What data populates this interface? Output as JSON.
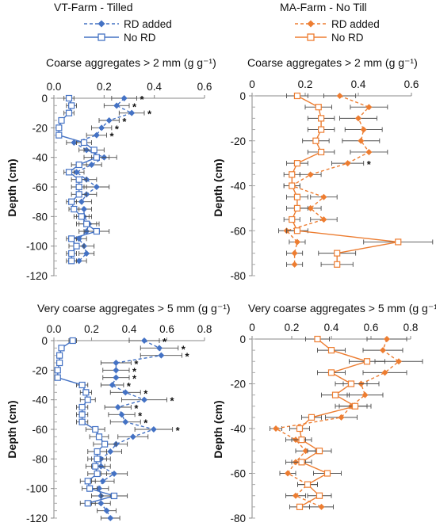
{
  "colors": {
    "blue": "#4472C4",
    "orange": "#ED7D31",
    "error_bar": "#4d4d4d"
  },
  "sites": {
    "left": {
      "title": "VT-Farm - Tilled",
      "legend": [
        "RD added",
        "No RD"
      ],
      "color": "#4472C4"
    },
    "right": {
      "title": "MA-Farm - No Till",
      "legend": [
        "RD added",
        "No RD"
      ],
      "color": "#ED7D31"
    }
  },
  "chart_data": [
    {
      "type": "line",
      "site": "VT-Farm - Tilled",
      "title": "Coarse aggregates > 2 mm (g g⁻¹)",
      "ylabel": "Depth (cm)",
      "xlim": [
        0,
        0.6
      ],
      "xticks": [
        0,
        0.2,
        0.4,
        0.6
      ],
      "xticklabels": [
        "0.0",
        "0.2",
        "0.4",
        "0.6"
      ],
      "ylim": [
        -120,
        0
      ],
      "yticks": [
        0,
        -20,
        -40,
        -60,
        -80,
        -100,
        -120
      ],
      "yticklabels": [
        "0",
        "-20",
        "-40",
        "-60",
        "-80",
        "-100",
        "-120"
      ],
      "series": [
        {
          "name": "RD added",
          "style": "dashed-diamond",
          "depth": [
            0,
            -5,
            -10,
            -15,
            -20,
            -25,
            -30,
            -35,
            -40,
            -45,
            -50,
            -55,
            -60,
            -65,
            -70,
            -75,
            -80,
            -85,
            -90,
            -95,
            -100,
            -105,
            -110
          ],
          "values": [
            0.28,
            0.25,
            0.31,
            0.22,
            0.19,
            0.17,
            0.08,
            0.13,
            0.2,
            0.15,
            0.09,
            0.13,
            0.17,
            0.13,
            0.11,
            0.12,
            0.12,
            0.14,
            0.13,
            0.1,
            0.12,
            0.13,
            0.1
          ],
          "err": [
            0.05,
            0.05,
            0.05,
            0.04,
            0.04,
            0.04,
            0.03,
            0.03,
            0.05,
            0.04,
            0.03,
            0.04,
            0.05,
            0.04,
            0.04,
            0.03,
            0.03,
            0.04,
            0.03,
            0.03,
            0.04,
            0.03,
            0.03
          ]
        },
        {
          "name": "No RD",
          "style": "solid-square",
          "depth": [
            0,
            -5,
            -10,
            -15,
            -20,
            -25,
            -30,
            -35,
            -40,
            -45,
            -50,
            -55,
            -60,
            -65,
            -70,
            -75,
            -80,
            -85,
            -90,
            -95,
            -100,
            -105,
            -110
          ],
          "values": [
            0.06,
            0.07,
            0.06,
            0.03,
            0.02,
            0.02,
            0.12,
            0.16,
            0.17,
            0.1,
            0.06,
            0.1,
            0.1,
            0.1,
            0.07,
            0.08,
            0.11,
            0.13,
            0.17,
            0.07,
            0.09,
            0.07,
            0.07
          ],
          "err": [
            0.02,
            0.02,
            0.02,
            0.01,
            0.01,
            0.01,
            0.03,
            0.04,
            0.05,
            0.03,
            0.02,
            0.03,
            0.03,
            0.03,
            0.02,
            0.02,
            0.03,
            0.04,
            0.05,
            0.02,
            0.03,
            0.02,
            0.02
          ]
        }
      ],
      "significance": {
        "label": "*",
        "depths": [
          0,
          -5,
          -10,
          -15,
          -20,
          -25
        ]
      }
    },
    {
      "type": "line",
      "site": "MA-Farm - No Till",
      "title": "Coarse aggregates > 2 mm (g g⁻¹)",
      "ylabel": "Depth (cm)",
      "xlim": [
        0,
        0.6
      ],
      "xticks": [
        0,
        0.2,
        0.4,
        0.6
      ],
      "xticklabels": [
        "0",
        "0.2",
        "0.4",
        "0.6"
      ],
      "ylim": [
        -80,
        0
      ],
      "yticks": [
        0,
        -20,
        -40,
        -60,
        -80
      ],
      "yticklabels": [
        "0",
        "-20",
        "-40",
        "-60",
        "-80"
      ],
      "series": [
        {
          "name": "RD added",
          "style": "dashed-diamond",
          "depth": [
            0,
            -5,
            -10,
            -15,
            -20,
            -25,
            -30,
            -35,
            -40,
            -45,
            -50,
            -55,
            -60,
            -65,
            -70,
            -75
          ],
          "values": [
            0.33,
            0.44,
            0.4,
            0.42,
            0.41,
            0.44,
            0.36,
            0.22,
            0.15,
            0.27,
            0.22,
            0.27,
            0.13,
            0.17,
            0.16,
            0.16
          ],
          "err": [
            0.06,
            0.07,
            0.07,
            0.07,
            0.07,
            0.07,
            0.06,
            0.04,
            0.03,
            0.05,
            0.04,
            0.05,
            0.03,
            0.03,
            0.03,
            0.03
          ]
        },
        {
          "name": "No RD",
          "style": "solid-square",
          "depth": [
            0,
            -5,
            -10,
            -15,
            -20,
            -25,
            -30,
            -35,
            -40,
            -45,
            -50,
            -55,
            -60,
            -65,
            -70,
            -75
          ],
          "values": [
            0.17,
            0.25,
            0.26,
            0.26,
            0.24,
            0.26,
            0.17,
            0.15,
            0.15,
            0.17,
            0.17,
            0.15,
            0.17,
            0.55,
            0.32,
            0.32
          ],
          "err": [
            0.04,
            0.05,
            0.05,
            0.05,
            0.05,
            0.05,
            0.04,
            0.03,
            0.03,
            0.04,
            0.04,
            0.03,
            0.04,
            0.13,
            0.07,
            0.06
          ]
        }
      ],
      "significance": {
        "label": "*",
        "depths": [
          -30
        ]
      }
    },
    {
      "type": "line",
      "site": "VT-Farm - Tilled",
      "title": "Very coarse aggregates > 5 mm (g g⁻¹)",
      "ylabel": "Depth (cm)",
      "xlim": [
        0,
        0.8
      ],
      "xticks": [
        0,
        0.2,
        0.4,
        0.6,
        0.8
      ],
      "xticklabels": [
        "0.0",
        "0.2",
        "0.4",
        "0.6",
        "0.8"
      ],
      "ylim": [
        -120,
        0
      ],
      "yticks": [
        0,
        -20,
        -40,
        -60,
        -80,
        -100,
        -120
      ],
      "yticklabels": [
        "0",
        "-20",
        "-40",
        "-60",
        "-80",
        "-100",
        "-120"
      ],
      "series": [
        {
          "name": "RD added",
          "style": "dashed-diamond",
          "depth": [
            0,
            -5,
            -10,
            -15,
            -20,
            -25,
            -30,
            -35,
            -40,
            -45,
            -50,
            -55,
            -60,
            -65,
            -70,
            -75,
            -80,
            -85,
            -90,
            -95,
            -100,
            -105,
            -110,
            -115,
            -120
          ],
          "values": [
            0.48,
            0.56,
            0.57,
            0.33,
            0.33,
            0.33,
            0.31,
            0.38,
            0.48,
            0.34,
            0.36,
            0.38,
            0.53,
            0.42,
            0.33,
            0.3,
            0.25,
            0.25,
            0.32,
            0.26,
            0.24,
            0.25,
            0.25,
            0.28,
            0.3
          ],
          "err": [
            0.08,
            0.1,
            0.11,
            0.08,
            0.07,
            0.07,
            0.06,
            0.08,
            0.12,
            0.07,
            0.07,
            0.08,
            0.1,
            0.08,
            0.06,
            0.06,
            0.05,
            0.05,
            0.07,
            0.06,
            0.05,
            0.05,
            0.05,
            0.05,
            0.05
          ]
        },
        {
          "name": "No RD",
          "style": "solid-square",
          "depth": [
            0,
            -5,
            -10,
            -15,
            -20,
            -25,
            -30,
            -35,
            -40,
            -45,
            -50,
            -55,
            -60,
            -65,
            -70,
            -75,
            -80,
            -85,
            -90,
            -95,
            -100,
            -105,
            -110
          ],
          "values": [
            0.1,
            0.04,
            0.03,
            0.03,
            0.02,
            0.02,
            0.15,
            0.17,
            0.18,
            0.15,
            0.15,
            0.15,
            0.22,
            0.24,
            0.27,
            0.23,
            0.23,
            0.22,
            0.23,
            0.18,
            0.19,
            0.32,
            0.18
          ],
          "err": [
            0.02,
            0.01,
            0.01,
            0.01,
            0.01,
            0.01,
            0.03,
            0.03,
            0.04,
            0.03,
            0.03,
            0.03,
            0.05,
            0.05,
            0.06,
            0.05,
            0.05,
            0.05,
            0.05,
            0.04,
            0.04,
            0.07,
            0.04
          ]
        }
      ],
      "significance": {
        "label": "*",
        "depths": [
          0,
          -5,
          -10,
          -15,
          -20,
          -25,
          -30,
          -35,
          -40,
          -45,
          -50,
          -55,
          -60
        ]
      }
    },
    {
      "type": "line",
      "site": "MA-Farm - No Till",
      "title": "Very coarse aggregates > 5 mm (g g⁻¹)",
      "ylabel": "Depth (cm)",
      "xlim": [
        0,
        0.8
      ],
      "xticks": [
        0,
        0.2,
        0.4,
        0.6,
        0.8
      ],
      "xticklabels": [
        "0",
        "0.2",
        "0.4",
        "0.6",
        "0.8"
      ],
      "ylim": [
        -80,
        0
      ],
      "yticks": [
        0,
        -20,
        -40,
        -60,
        -80
      ],
      "yticklabels": [
        "0",
        "-20",
        "-40",
        "-60",
        "-80"
      ],
      "series": [
        {
          "name": "RD added",
          "style": "dashed-diamond",
          "depth": [
            0,
            -5,
            -10,
            -15,
            -20,
            -25,
            -30,
            -35,
            -40,
            -45,
            -50,
            -55,
            -60,
            -65,
            -70,
            -75
          ],
          "values": [
            0.68,
            0.66,
            0.74,
            0.67,
            0.55,
            0.57,
            0.5,
            0.45,
            0.12,
            0.22,
            0.27,
            0.22,
            0.18,
            0.28,
            0.22,
            0.35
          ],
          "err": [
            0.1,
            0.1,
            0.12,
            0.11,
            0.09,
            0.09,
            0.08,
            0.08,
            0.03,
            0.05,
            0.05,
            0.05,
            0.04,
            0.05,
            0.05,
            0.06
          ]
        },
        {
          "name": "No RD",
          "style": "solid-square",
          "depth": [
            0,
            -5,
            -10,
            -15,
            -20,
            -25,
            -30,
            -35,
            -40,
            -45,
            -50,
            -55,
            -60,
            -65,
            -70,
            -75
          ],
          "values": [
            0.33,
            0.4,
            0.58,
            0.4,
            0.5,
            0.42,
            0.52,
            0.3,
            0.24,
            0.25,
            0.34,
            0.25,
            0.38,
            0.28,
            0.34,
            0.24
          ],
          "err": [
            0.06,
            0.07,
            0.09,
            0.07,
            0.08,
            0.07,
            0.08,
            0.05,
            0.05,
            0.05,
            0.06,
            0.05,
            0.07,
            0.05,
            0.06,
            0.05
          ]
        }
      ],
      "significance": {
        "label": "*",
        "depths": []
      }
    }
  ]
}
